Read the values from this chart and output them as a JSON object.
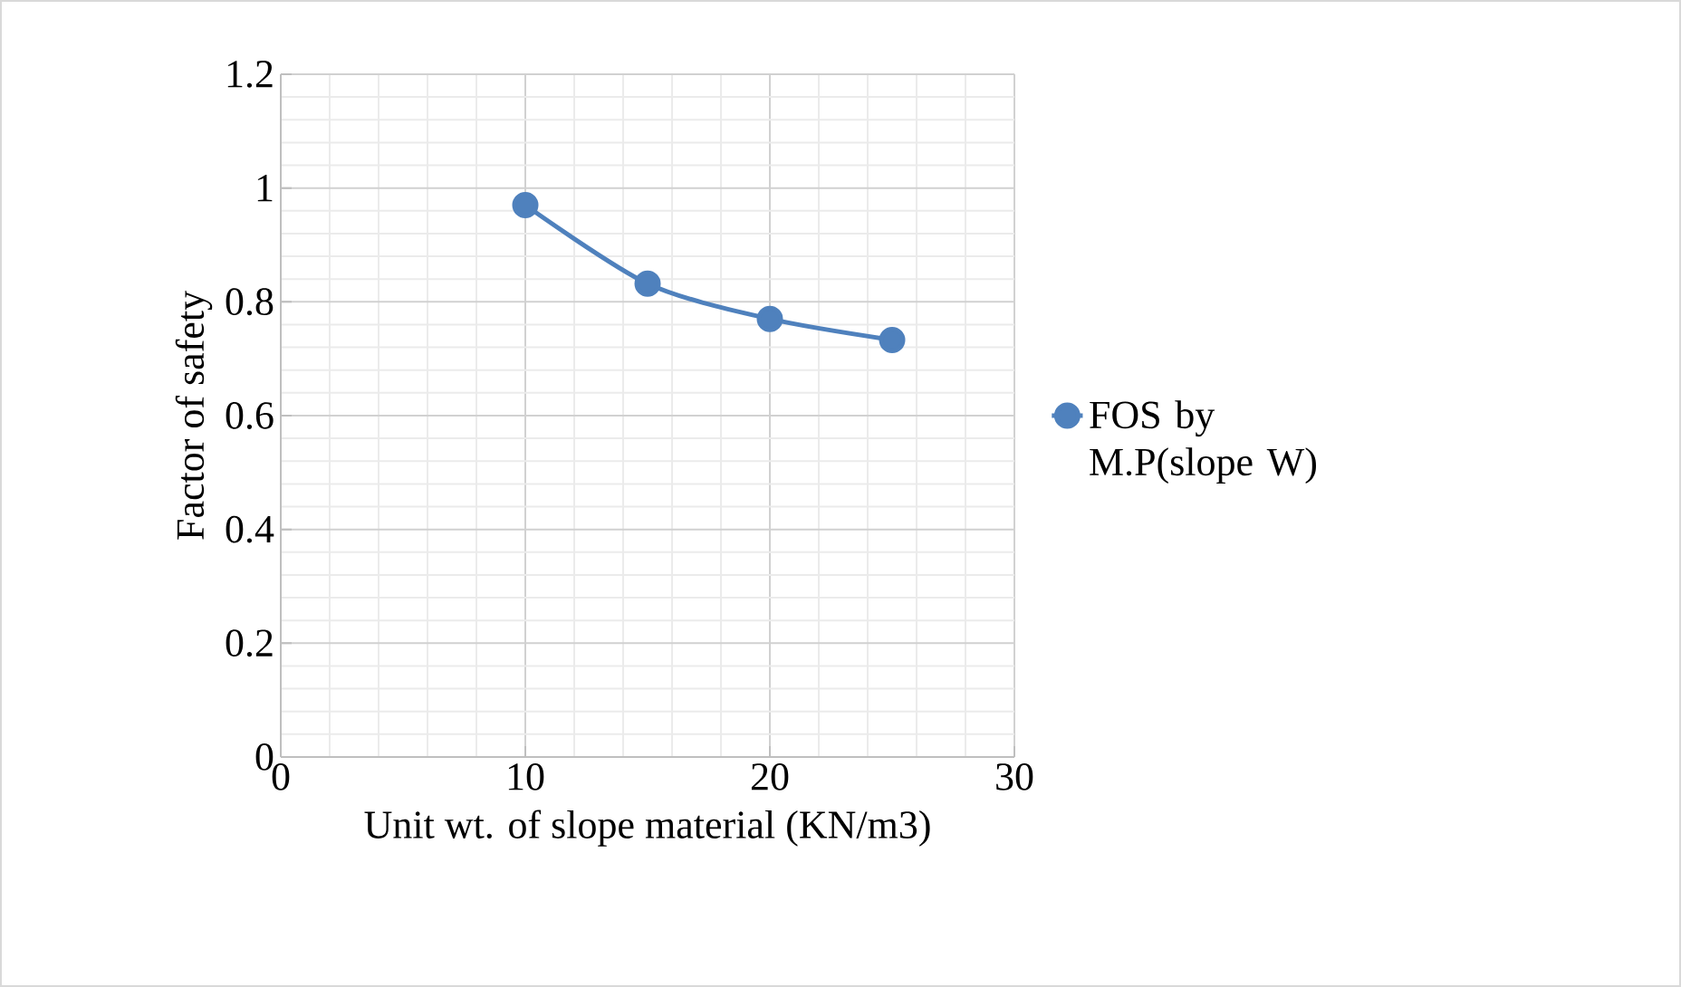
{
  "chart_data": {
    "type": "line",
    "xlabel": "Unit wt. of slope material (KN/m3)",
    "ylabel": "Factor of safety",
    "x": [
      10,
      15,
      20,
      25
    ],
    "series": [
      {
        "name": "FOS by M.P(slope W)",
        "color": "#4f81bd",
        "values": [
          0.97,
          0.832,
          0.77,
          0.733
        ]
      }
    ],
    "xlim": [
      0,
      30
    ],
    "xticks": [
      0,
      10,
      20,
      30
    ],
    "ylim": [
      0,
      1.2
    ],
    "yticks": [
      0,
      0.2,
      0.4,
      0.6,
      0.8,
      1,
      1.2
    ],
    "grid": true,
    "legend": "right",
    "marker": "circle",
    "line_style": "solid"
  }
}
